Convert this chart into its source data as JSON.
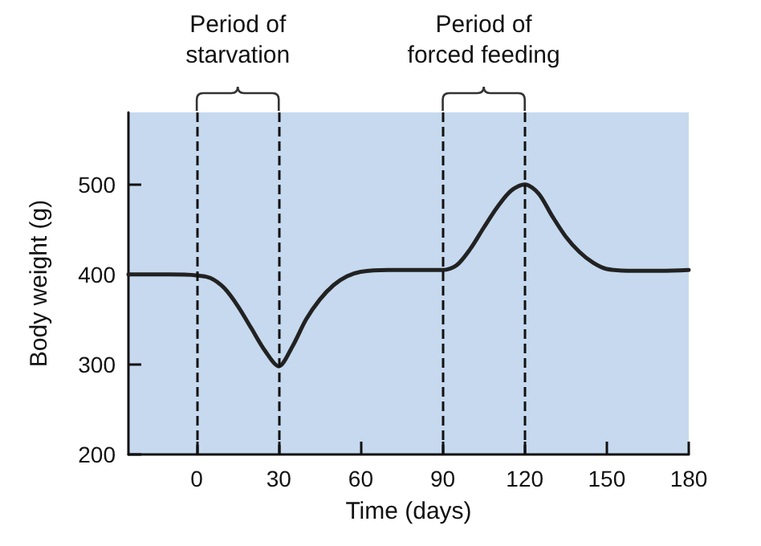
{
  "chart_data": {
    "type": "line",
    "xlabel": "Time (days)",
    "ylabel": "Body weight (g)",
    "x": [
      -25,
      -10,
      0,
      5,
      10,
      15,
      20,
      25,
      30,
      35,
      40,
      45,
      50,
      55,
      60,
      70,
      80,
      90,
      95,
      100,
      105,
      110,
      115,
      120,
      125,
      130,
      135,
      140,
      145,
      150,
      160,
      170,
      180
    ],
    "series": [
      {
        "color": "#222222",
        "values": [
          400,
          400,
          399,
          396,
          385,
          365,
          340,
          315,
          298,
          320,
          350,
          372,
          388,
          398,
          403,
          405,
          405,
          405,
          410,
          428,
          452,
          475,
          493,
          500,
          490,
          465,
          442,
          425,
          413,
          406,
          404,
          404,
          405
        ]
      }
    ],
    "xlim": [
      -25,
      180
    ],
    "xticks": [
      0,
      30,
      60,
      90,
      120,
      150,
      180
    ],
    "ylim": [
      200,
      580
    ],
    "yticks": [
      200,
      300,
      400,
      500
    ],
    "ref_lines": [
      {
        "axis": "x",
        "value": 0,
        "line_style": "dashed",
        "color": "#111111"
      },
      {
        "axis": "x",
        "value": 30,
        "line_style": "dashed",
        "color": "#111111"
      },
      {
        "axis": "x",
        "value": 90,
        "line_style": "dashed",
        "color": "#111111"
      },
      {
        "axis": "x",
        "value": 120,
        "line_style": "dashed",
        "color": "#111111"
      }
    ],
    "annotations": [
      "Period of\nstarvation",
      "Period of\nforced feeding"
    ],
    "grid": false,
    "marker": "none",
    "line_style": "solid"
  }
}
